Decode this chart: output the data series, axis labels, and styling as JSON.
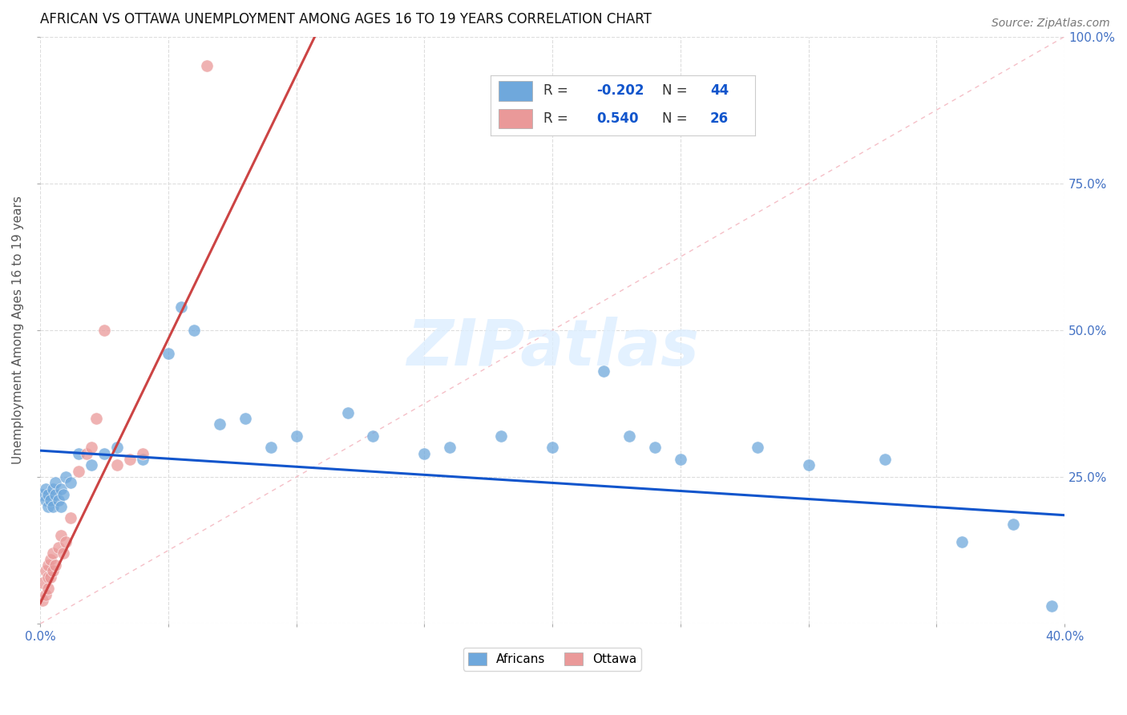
{
  "title": "AFRICAN VS OTTAWA UNEMPLOYMENT AMONG AGES 16 TO 19 YEARS CORRELATION CHART",
  "source": "Source: ZipAtlas.com",
  "ylabel": "Unemployment Among Ages 16 to 19 years",
  "xlim": [
    0.0,
    0.4
  ],
  "ylim": [
    0.0,
    1.0
  ],
  "xtick_positions": [
    0.0,
    0.05,
    0.1,
    0.15,
    0.2,
    0.25,
    0.3,
    0.35,
    0.4
  ],
  "xticklabels": [
    "0.0%",
    "",
    "",
    "",
    "",
    "",
    "",
    "",
    "40.0%"
  ],
  "ytick_positions": [
    0.0,
    0.25,
    0.5,
    0.75,
    1.0
  ],
  "yticklabels": [
    "",
    "25.0%",
    "50.0%",
    "75.0%",
    "100.0%"
  ],
  "africans_R": -0.202,
  "africans_N": 44,
  "ottawa_R": 0.54,
  "ottawa_N": 26,
  "africans_color": "#6fa8dc",
  "ottawa_color": "#ea9999",
  "africans_line_color": "#1155cc",
  "ottawa_line_color": "#cc4444",
  "ref_line_color": "#f4b8c1",
  "watermark_text": "ZIPatlas",
  "watermark_color": "#ddeeff",
  "background_color": "#ffffff",
  "grid_color": "#dddddd",
  "africans_x": [
    0.001,
    0.002,
    0.002,
    0.003,
    0.003,
    0.004,
    0.005,
    0.005,
    0.006,
    0.006,
    0.007,
    0.008,
    0.008,
    0.009,
    0.01,
    0.012,
    0.015,
    0.02,
    0.025,
    0.03,
    0.04,
    0.05,
    0.055,
    0.06,
    0.07,
    0.08,
    0.09,
    0.1,
    0.12,
    0.13,
    0.15,
    0.16,
    0.18,
    0.2,
    0.22,
    0.23,
    0.24,
    0.25,
    0.28,
    0.3,
    0.33,
    0.36,
    0.38,
    0.395
  ],
  "africans_y": [
    0.22,
    0.21,
    0.23,
    0.2,
    0.22,
    0.21,
    0.23,
    0.2,
    0.22,
    0.24,
    0.21,
    0.23,
    0.2,
    0.22,
    0.25,
    0.24,
    0.29,
    0.27,
    0.29,
    0.3,
    0.28,
    0.46,
    0.54,
    0.5,
    0.34,
    0.35,
    0.3,
    0.32,
    0.36,
    0.32,
    0.29,
    0.3,
    0.32,
    0.3,
    0.43,
    0.32,
    0.3,
    0.28,
    0.3,
    0.27,
    0.28,
    0.14,
    0.17,
    0.03
  ],
  "ottawa_x": [
    0.001,
    0.001,
    0.002,
    0.002,
    0.003,
    0.003,
    0.003,
    0.004,
    0.004,
    0.005,
    0.005,
    0.006,
    0.007,
    0.008,
    0.009,
    0.01,
    0.012,
    0.015,
    0.018,
    0.02,
    0.022,
    0.025,
    0.03,
    0.035,
    0.04,
    0.065
  ],
  "ottawa_y": [
    0.04,
    0.07,
    0.05,
    0.09,
    0.06,
    0.08,
    0.1,
    0.08,
    0.11,
    0.09,
    0.12,
    0.1,
    0.13,
    0.15,
    0.12,
    0.14,
    0.18,
    0.26,
    0.29,
    0.3,
    0.35,
    0.5,
    0.27,
    0.28,
    0.29,
    0.95
  ],
  "af_trend_x0": 0.0,
  "af_trend_y0": 0.295,
  "af_trend_x1": 0.4,
  "af_trend_y1": 0.185,
  "ot_trend_x0": 0.0,
  "ot_trend_y0": 0.035,
  "ot_trend_x1": 0.065,
  "ot_trend_y1": 0.62,
  "legend_africans_R": "-0.202",
  "legend_africans_N": "44",
  "legend_ottawa_R": "0.540",
  "legend_ottawa_N": "26"
}
